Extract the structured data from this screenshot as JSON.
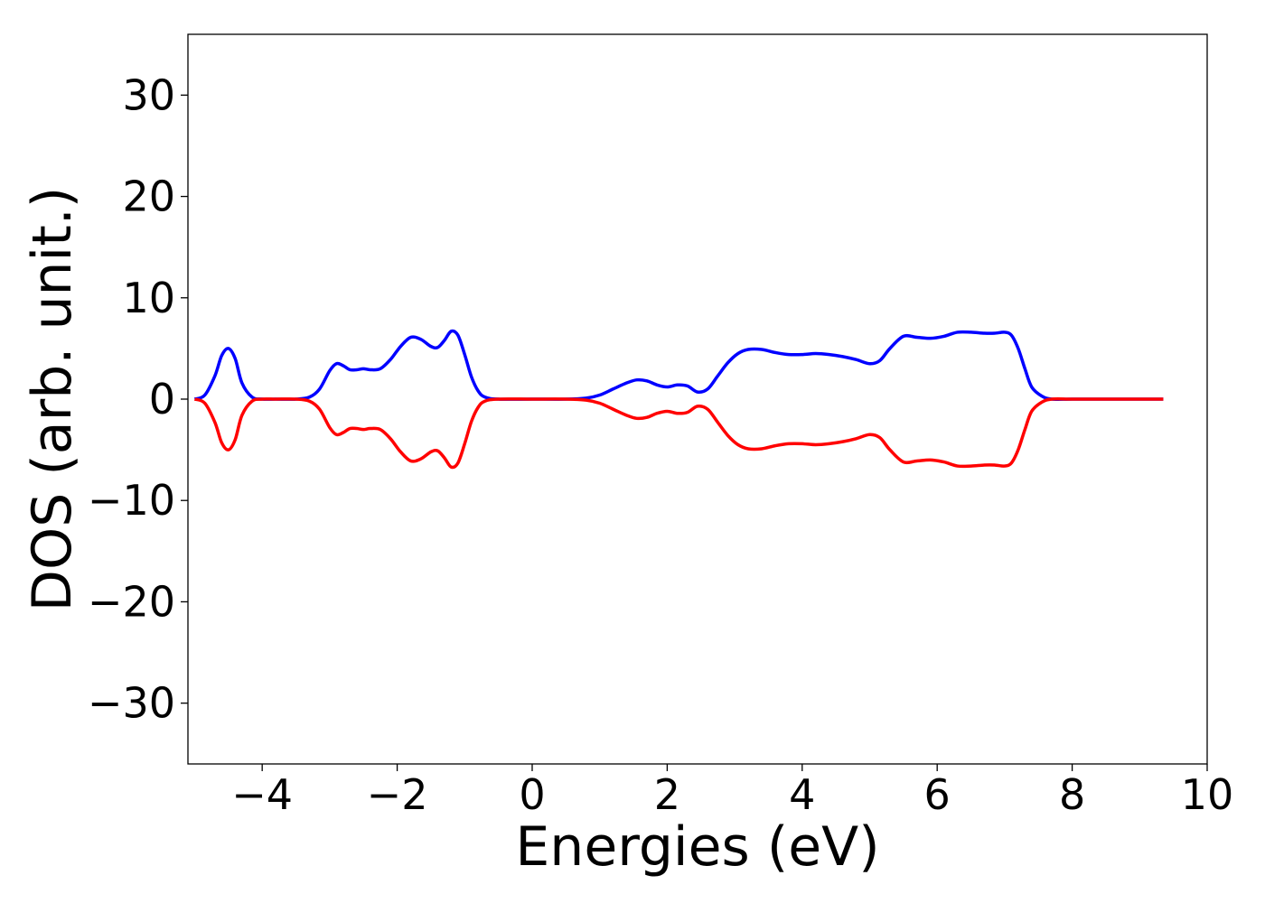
{
  "chart_data": {
    "type": "line",
    "title": "",
    "xlabel": "Energies (eV)",
    "ylabel": "DOS (arb. unit.)",
    "xlim": [
      -5.1,
      10
    ],
    "ylim": [
      -36,
      36
    ],
    "xticks": [
      -4,
      -2,
      0,
      2,
      4,
      6,
      8,
      10
    ],
    "yticks": [
      -30,
      -20,
      -10,
      0,
      10,
      20,
      30
    ],
    "xtick_labels": [
      "−4",
      "−2",
      "0",
      "2",
      "4",
      "6",
      "8",
      "10"
    ],
    "ytick_labels": [
      "−30",
      "−20",
      "−10",
      "0",
      "10",
      "20",
      "30"
    ],
    "grid": false,
    "series": [
      {
        "color": "#0000ff",
        "x": [
          -5.0,
          -4.85,
          -4.7,
          -4.6,
          -4.5,
          -4.4,
          -4.3,
          -4.15,
          -4.0,
          -3.8,
          -3.5,
          -3.3,
          -3.15,
          -3.0,
          -2.9,
          -2.8,
          -2.7,
          -2.6,
          -2.5,
          -2.4,
          -2.25,
          -2.1,
          -1.95,
          -1.8,
          -1.65,
          -1.5,
          -1.4,
          -1.3,
          -1.2,
          -1.1,
          -1.0,
          -0.9,
          -0.8,
          -0.7,
          -0.5,
          0.0,
          0.5,
          0.8,
          1.0,
          1.2,
          1.4,
          1.55,
          1.7,
          1.85,
          2.0,
          2.15,
          2.3,
          2.45,
          2.6,
          2.75,
          2.9,
          3.05,
          3.2,
          3.4,
          3.6,
          3.8,
          4.0,
          4.2,
          4.4,
          4.6,
          4.8,
          5.0,
          5.15,
          5.3,
          5.5,
          5.7,
          5.9,
          6.1,
          6.3,
          6.5,
          6.7,
          6.85,
          7.0,
          7.1,
          7.2,
          7.3,
          7.4,
          7.55,
          7.7,
          8.0,
          8.5,
          9.0,
          9.35
        ],
        "y": [
          0.0,
          0.4,
          2.3,
          4.3,
          5.0,
          4.0,
          1.6,
          0.2,
          0.0,
          0.0,
          0.0,
          0.2,
          1.0,
          2.8,
          3.5,
          3.3,
          2.9,
          2.9,
          3.0,
          2.9,
          3.0,
          3.9,
          5.2,
          6.1,
          5.9,
          5.2,
          5.1,
          5.8,
          6.7,
          6.3,
          4.4,
          2.2,
          0.8,
          0.2,
          0.0,
          0.0,
          0.0,
          0.1,
          0.4,
          1.0,
          1.6,
          1.9,
          1.8,
          1.4,
          1.2,
          1.4,
          1.3,
          0.7,
          1.0,
          2.3,
          3.6,
          4.5,
          4.9,
          4.9,
          4.6,
          4.4,
          4.4,
          4.5,
          4.4,
          4.2,
          3.9,
          3.5,
          3.8,
          5.0,
          6.2,
          6.1,
          6.0,
          6.2,
          6.6,
          6.6,
          6.5,
          6.5,
          6.6,
          6.3,
          5.0,
          3.0,
          1.2,
          0.3,
          0.0,
          0.0,
          0.0,
          0.0,
          0.0
        ]
      },
      {
        "color": "#ff0000",
        "x": [
          -5.0,
          -4.85,
          -4.7,
          -4.6,
          -4.5,
          -4.4,
          -4.3,
          -4.15,
          -4.0,
          -3.8,
          -3.5,
          -3.3,
          -3.15,
          -3.0,
          -2.9,
          -2.8,
          -2.7,
          -2.6,
          -2.5,
          -2.4,
          -2.25,
          -2.1,
          -1.95,
          -1.8,
          -1.65,
          -1.5,
          -1.4,
          -1.3,
          -1.2,
          -1.1,
          -1.0,
          -0.9,
          -0.8,
          -0.7,
          -0.5,
          0.0,
          0.5,
          0.8,
          1.0,
          1.2,
          1.4,
          1.55,
          1.7,
          1.85,
          2.0,
          2.15,
          2.3,
          2.45,
          2.6,
          2.75,
          2.9,
          3.05,
          3.2,
          3.4,
          3.6,
          3.8,
          4.0,
          4.2,
          4.4,
          4.6,
          4.8,
          5.0,
          5.15,
          5.3,
          5.5,
          5.7,
          5.9,
          6.1,
          6.3,
          6.5,
          6.7,
          6.85,
          7.0,
          7.1,
          7.2,
          7.3,
          7.4,
          7.55,
          7.7,
          8.0,
          8.5,
          9.0,
          9.35
        ],
        "y": [
          0.0,
          -0.4,
          -2.3,
          -4.3,
          -5.0,
          -4.0,
          -1.6,
          -0.2,
          0.0,
          0.0,
          0.0,
          -0.2,
          -1.0,
          -2.8,
          -3.5,
          -3.3,
          -2.9,
          -2.9,
          -3.0,
          -2.9,
          -3.0,
          -3.9,
          -5.2,
          -6.1,
          -5.9,
          -5.2,
          -5.1,
          -5.8,
          -6.7,
          -6.3,
          -4.4,
          -2.2,
          -0.8,
          -0.2,
          0.0,
          0.0,
          0.0,
          -0.1,
          -0.4,
          -1.0,
          -1.6,
          -1.9,
          -1.8,
          -1.4,
          -1.2,
          -1.4,
          -1.3,
          -0.7,
          -1.0,
          -2.3,
          -3.6,
          -4.5,
          -4.9,
          -4.9,
          -4.6,
          -4.4,
          -4.4,
          -4.5,
          -4.4,
          -4.2,
          -3.9,
          -3.5,
          -3.8,
          -5.0,
          -6.2,
          -6.1,
          -6.0,
          -6.2,
          -6.6,
          -6.6,
          -6.5,
          -6.5,
          -6.6,
          -6.3,
          -5.0,
          -3.0,
          -1.2,
          -0.3,
          0.0,
          0.0,
          0.0,
          0.0,
          0.0
        ]
      }
    ]
  }
}
